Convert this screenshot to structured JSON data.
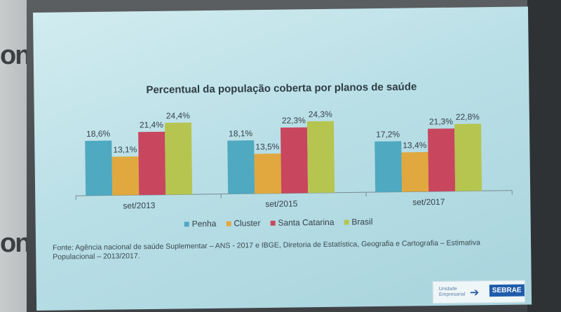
{
  "wall": {
    "text_top": "onl",
    "text_bottom": "on"
  },
  "chart_data": {
    "type": "bar",
    "title": "Percentual da população coberta por planos de saúde",
    "categories": [
      "set/2013",
      "set/2015",
      "set/2017"
    ],
    "series": [
      {
        "name": "Penha",
        "color": "#4fa9c0",
        "values": [
          18.6,
          18.1,
          17.2
        ],
        "labels": [
          "18,6%",
          "18,1%",
          "17,2%"
        ]
      },
      {
        "name": "Cluster",
        "color": "#e0a83e",
        "values": [
          13.1,
          13.5,
          13.4
        ],
        "labels": [
          "13,1%",
          "13,5%",
          "13,4%"
        ]
      },
      {
        "name": "Santa Catarina",
        "color": "#c8475e",
        "values": [
          21.4,
          22.3,
          21.3
        ],
        "labels": [
          "21,4%",
          "22,3%",
          "21,3%"
        ]
      },
      {
        "name": "Brasil",
        "color": "#b5c550",
        "values": [
          24.4,
          24.3,
          22.8
        ],
        "labels": [
          "24,4%",
          "24,3%",
          "22,8%"
        ]
      }
    ],
    "ylim": [
      0,
      25
    ],
    "grid": false,
    "legend_position": "bottom"
  },
  "source": "Fonte: Agência nacional de saúde Suplementar – ANS - 2017 e IBGE, Diretoria de Estatística, Geografia e Cartografia – Estimativa Populacional – 2013/2017.",
  "logo": {
    "small_text": "Unidade Empresarial",
    "arrow": "➔",
    "brand": "SEBRAE"
  }
}
